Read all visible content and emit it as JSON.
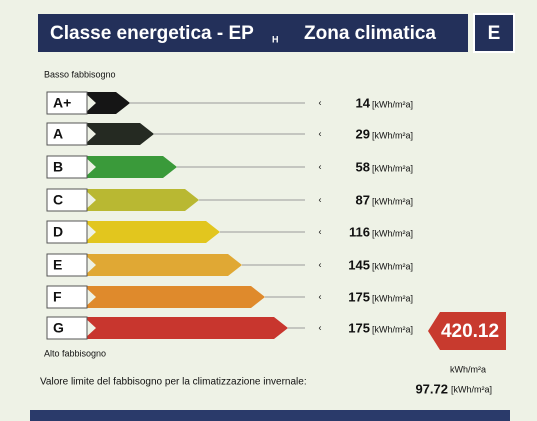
{
  "header": {
    "title": "Classe energetica - EP",
    "subscript": "H",
    "zone_label": "Zona climatica",
    "zone": "E"
  },
  "low_label": "Basso fabbisogno",
  "high_label": "Alto fabbisogno",
  "rows": [
    {
      "class": "A+",
      "value": 14,
      "unit": "[kWh/m²a]"
    },
    {
      "class": "A",
      "value": 29,
      "unit": "[kWh/m²a]"
    },
    {
      "class": "B",
      "value": 58,
      "unit": "[kWh/m²a]"
    },
    {
      "class": "C",
      "value": 87,
      "unit": "[kWh/m²a]"
    },
    {
      "class": "D",
      "value": 116,
      "unit": "[kWh/m²a]"
    },
    {
      "class": "E",
      "value": 145,
      "unit": "[kWh/m²a]"
    },
    {
      "class": "F",
      "value": 175,
      "unit": "[kWh/m²a]"
    },
    {
      "class": "G",
      "value": 175,
      "unit": "[kWh/m²a]"
    }
  ],
  "result": {
    "value": "420.12",
    "unit": "kWh/m²a"
  },
  "footer": {
    "label": "Valore limite del fabbisogno per la climatizzazione invernale:",
    "value": "97.72",
    "unit": "[kWh/m²a]"
  }
}
